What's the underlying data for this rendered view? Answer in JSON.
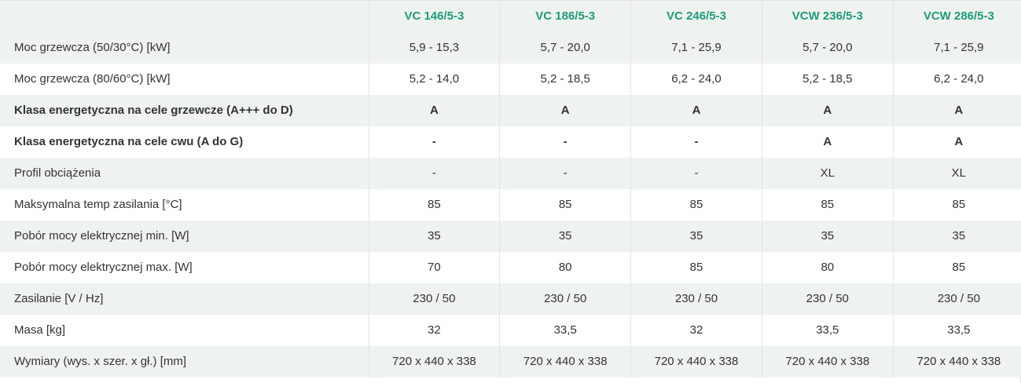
{
  "models": [
    "VC 146/5-3",
    "VC 186/5-3",
    "VC 246/5-3",
    "VCW 236/5-3",
    "VCW 286/5-3"
  ],
  "rows": [
    {
      "label": "Moc grzewcza (50/30°C) [kW]",
      "bold": false,
      "values": [
        "5,9 - 15,3",
        "5,7 - 20,0",
        "7,1 - 25,9",
        "5,7 - 20,0",
        "7,1 - 25,9"
      ]
    },
    {
      "label": "Moc grzewcza (80/60°C) [kW]",
      "bold": false,
      "values": [
        "5,2 - 14,0",
        "5,2 - 18,5",
        "6,2 - 24,0",
        "5,2 - 18,5",
        "6,2 - 24,0"
      ]
    },
    {
      "label": "Klasa energetyczna na cele grzewcze (A+++ do D)",
      "bold": true,
      "values": [
        "A",
        "A",
        "A",
        "A",
        "A"
      ]
    },
    {
      "label": "Klasa energetyczna na cele cwu (A do G)",
      "bold": true,
      "values": [
        "-",
        "-",
        "-",
        "A",
        "A"
      ]
    },
    {
      "label": "Profil obciążenia",
      "bold": false,
      "values": [
        "-",
        "-",
        "-",
        "XL",
        "XL"
      ]
    },
    {
      "label": "Maksymalna temp zasilania [°C]",
      "bold": false,
      "values": [
        "85",
        "85",
        "85",
        "85",
        "85"
      ]
    },
    {
      "label": "Pobór mocy elektrycznej min. [W]",
      "bold": false,
      "values": [
        "35",
        "35",
        "35",
        "35",
        "35"
      ]
    },
    {
      "label": "Pobór mocy elektrycznej max. [W]",
      "bold": false,
      "values": [
        "70",
        "80",
        "85",
        "80",
        "85"
      ]
    },
    {
      "label": "Zasilanie [V / Hz]",
      "bold": false,
      "values": [
        "230 / 50",
        "230 / 50",
        "230 / 50",
        "230 / 50",
        "230 / 50"
      ]
    },
    {
      "label": "Masa [kg]",
      "bold": false,
      "values": [
        "32",
        "33,5",
        "32",
        "33,5",
        "33,5"
      ]
    },
    {
      "label": "Wymiary (wys. x szer. x gł.) [mm]",
      "bold": false,
      "values": [
        "720 x 440 x 338",
        "720 x 440 x 338",
        "720 x 440 x 338",
        "720 x 440 x 338",
        "720 x 440 x 338"
      ]
    }
  ],
  "colors": {
    "header_text": "#1f9a7a",
    "stripe": "#eef3f0",
    "border": "#e3e3e3",
    "text": "#333333"
  }
}
